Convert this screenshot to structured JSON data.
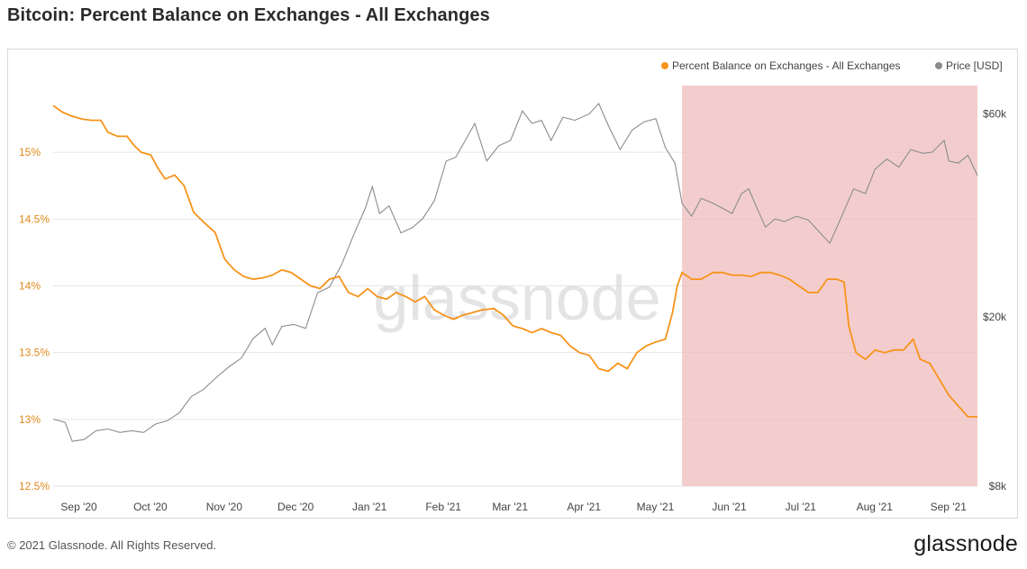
{
  "title": "Bitcoin: Percent Balance on Exchanges - All Exchanges",
  "footer": {
    "copyright": "© 2021 Glassnode. All Rights Reserved.",
    "logo": "glassnode"
  },
  "watermark": "glassnode",
  "colors": {
    "balance": "#f7931a",
    "price": "#8c8c8c",
    "highlight": "#f0c0c0",
    "grid": "#e6e6e6"
  },
  "chart_data": {
    "type": "line",
    "x_range": [
      "2020-08-28",
      "2021-09-20"
    ],
    "legend_position": "top-right",
    "grid": {
      "horizontal": true,
      "vertical": false
    },
    "x_ticks": [
      {
        "label": "Sep '20",
        "date": "2020-09-01"
      },
      {
        "label": "Oct '20",
        "date": "2020-10-01"
      },
      {
        "label": "Nov '20",
        "date": "2020-11-01"
      },
      {
        "label": "Dec '20",
        "date": "2020-12-01"
      },
      {
        "label": "Jan '21",
        "date": "2021-01-01"
      },
      {
        "label": "Feb '21",
        "date": "2021-02-01"
      },
      {
        "label": "Mar '21",
        "date": "2021-03-01"
      },
      {
        "label": "Apr '21",
        "date": "2021-04-01"
      },
      {
        "label": "May '21",
        "date": "2021-05-01"
      },
      {
        "label": "Jun '21",
        "date": "2021-06-01"
      },
      {
        "label": "Jul '21",
        "date": "2021-07-01"
      },
      {
        "label": "Aug '21",
        "date": "2021-08-01"
      },
      {
        "label": "Sep '21",
        "date": "2021-09-01"
      }
    ],
    "y_left": {
      "range": [
        12.5,
        15.5
      ],
      "ticks": [
        12.5,
        13,
        13.5,
        14,
        14.5,
        15
      ],
      "tick_labels": [
        "12.5%",
        "13%",
        "13.5%",
        "14%",
        "14.5%",
        "15%"
      ]
    },
    "y_right": {
      "scale": "log",
      "range": [
        8000,
        70000
      ],
      "ticks": [
        8000,
        20000,
        60000
      ],
      "tick_labels": [
        "$8k",
        "$20k",
        "$60k"
      ]
    },
    "highlight_region": {
      "from": "2021-05-19",
      "to": "2021-09-20"
    },
    "series": [
      {
        "name": "Percent Balance on Exchanges - All Exchanges",
        "axis": "left",
        "points": [
          [
            "2020-08-28",
            15.35
          ],
          [
            "2020-09-01",
            15.3
          ],
          [
            "2020-09-05",
            15.27
          ],
          [
            "2020-09-09",
            15.25
          ],
          [
            "2020-09-13",
            15.24
          ],
          [
            "2020-09-17",
            15.24
          ],
          [
            "2020-09-20",
            15.15
          ],
          [
            "2020-09-24",
            15.12
          ],
          [
            "2020-09-28",
            15.12
          ],
          [
            "2020-10-01",
            15.05
          ],
          [
            "2020-10-04",
            15.0
          ],
          [
            "2020-10-08",
            14.98
          ],
          [
            "2020-10-11",
            14.88
          ],
          [
            "2020-10-14",
            14.8
          ],
          [
            "2020-10-18",
            14.83
          ],
          [
            "2020-10-22",
            14.75
          ],
          [
            "2020-10-26",
            14.55
          ],
          [
            "2020-10-30",
            14.48
          ],
          [
            "2020-11-04",
            14.4
          ],
          [
            "2020-11-08",
            14.2
          ],
          [
            "2020-11-12",
            14.12
          ],
          [
            "2020-11-16",
            14.07
          ],
          [
            "2020-11-20",
            14.05
          ],
          [
            "2020-11-24",
            14.06
          ],
          [
            "2020-11-28",
            14.08
          ],
          [
            "2020-12-02",
            14.12
          ],
          [
            "2020-12-06",
            14.1
          ],
          [
            "2020-12-10",
            14.05
          ],
          [
            "2020-12-14",
            14.0
          ],
          [
            "2020-12-18",
            13.98
          ],
          [
            "2020-12-22",
            14.05
          ],
          [
            "2020-12-26",
            14.07
          ],
          [
            "2020-12-30",
            13.95
          ],
          [
            "2021-01-03",
            13.92
          ],
          [
            "2021-01-07",
            13.98
          ],
          [
            "2021-01-11",
            13.92
          ],
          [
            "2021-01-15",
            13.9
          ],
          [
            "2021-01-19",
            13.95
          ],
          [
            "2021-01-23",
            13.92
          ],
          [
            "2021-01-27",
            13.88
          ],
          [
            "2021-01-31",
            13.92
          ],
          [
            "2021-02-04",
            13.82
          ],
          [
            "2021-02-08",
            13.78
          ],
          [
            "2021-02-12",
            13.75
          ],
          [
            "2021-02-16",
            13.78
          ],
          [
            "2021-02-20",
            13.8
          ],
          [
            "2021-02-24",
            13.82
          ],
          [
            "2021-03-01",
            13.83
          ],
          [
            "2021-03-05",
            13.78
          ],
          [
            "2021-03-09",
            13.7
          ],
          [
            "2021-03-13",
            13.68
          ],
          [
            "2021-03-17",
            13.65
          ],
          [
            "2021-03-21",
            13.68
          ],
          [
            "2021-03-25",
            13.65
          ],
          [
            "2021-03-29",
            13.63
          ],
          [
            "2021-04-02",
            13.55
          ],
          [
            "2021-04-06",
            13.5
          ],
          [
            "2021-04-10",
            13.48
          ],
          [
            "2021-04-14",
            13.38
          ],
          [
            "2021-04-18",
            13.36
          ],
          [
            "2021-04-22",
            13.42
          ],
          [
            "2021-04-26",
            13.38
          ],
          [
            "2021-04-30",
            13.5
          ],
          [
            "2021-05-04",
            13.55
          ],
          [
            "2021-05-08",
            13.58
          ],
          [
            "2021-05-12",
            13.6
          ],
          [
            "2021-05-15",
            13.8
          ],
          [
            "2021-05-17",
            14.0
          ],
          [
            "2021-05-19",
            14.1
          ],
          [
            "2021-05-23",
            14.05
          ],
          [
            "2021-05-27",
            14.05
          ],
          [
            "2021-06-01",
            14.1
          ],
          [
            "2021-06-05",
            14.1
          ],
          [
            "2021-06-09",
            14.08
          ],
          [
            "2021-06-13",
            14.08
          ],
          [
            "2021-06-17",
            14.07
          ],
          [
            "2021-06-21",
            14.1
          ],
          [
            "2021-06-25",
            14.1
          ],
          [
            "2021-06-29",
            14.08
          ],
          [
            "2021-07-03",
            14.05
          ],
          [
            "2021-07-07",
            14.0
          ],
          [
            "2021-07-11",
            13.95
          ],
          [
            "2021-07-15",
            13.95
          ],
          [
            "2021-07-19",
            14.05
          ],
          [
            "2021-07-23",
            14.05
          ],
          [
            "2021-07-26",
            14.03
          ],
          [
            "2021-07-28",
            13.7
          ],
          [
            "2021-07-31",
            13.5
          ],
          [
            "2021-08-04",
            13.45
          ],
          [
            "2021-08-08",
            13.52
          ],
          [
            "2021-08-12",
            13.5
          ],
          [
            "2021-08-16",
            13.52
          ],
          [
            "2021-08-20",
            13.52
          ],
          [
            "2021-08-24",
            13.6
          ],
          [
            "2021-08-27",
            13.45
          ],
          [
            "2021-08-31",
            13.42
          ],
          [
            "2021-09-04",
            13.3
          ],
          [
            "2021-09-08",
            13.18
          ],
          [
            "2021-09-12",
            13.1
          ],
          [
            "2021-09-16",
            13.02
          ],
          [
            "2021-09-20",
            13.02
          ]
        ]
      },
      {
        "name": "Price [USD]",
        "axis": "right",
        "points": [
          [
            "2020-08-28",
            11500
          ],
          [
            "2020-09-02",
            11300
          ],
          [
            "2020-09-05",
            10200
          ],
          [
            "2020-09-10",
            10300
          ],
          [
            "2020-09-15",
            10800
          ],
          [
            "2020-09-20",
            10900
          ],
          [
            "2020-09-25",
            10700
          ],
          [
            "2020-09-30",
            10800
          ],
          [
            "2020-10-05",
            10700
          ],
          [
            "2020-10-10",
            11200
          ],
          [
            "2020-10-15",
            11400
          ],
          [
            "2020-10-20",
            11900
          ],
          [
            "2020-10-25",
            13000
          ],
          [
            "2020-10-30",
            13500
          ],
          [
            "2020-11-05",
            14500
          ],
          [
            "2020-11-10",
            15300
          ],
          [
            "2020-11-15",
            16000
          ],
          [
            "2020-11-20",
            17800
          ],
          [
            "2020-11-25",
            18800
          ],
          [
            "2020-11-28",
            17200
          ],
          [
            "2020-12-02",
            19000
          ],
          [
            "2020-12-07",
            19200
          ],
          [
            "2020-12-12",
            18800
          ],
          [
            "2020-12-17",
            22800
          ],
          [
            "2020-12-22",
            23500
          ],
          [
            "2020-12-27",
            26500
          ],
          [
            "2021-01-02",
            32000
          ],
          [
            "2021-01-06",
            36000
          ],
          [
            "2021-01-09",
            40500
          ],
          [
            "2021-01-12",
            35000
          ],
          [
            "2021-01-16",
            36500
          ],
          [
            "2021-01-21",
            31500
          ],
          [
            "2021-01-26",
            32500
          ],
          [
            "2021-01-30",
            34000
          ],
          [
            "2021-02-04",
            37500
          ],
          [
            "2021-02-09",
            46500
          ],
          [
            "2021-02-13",
            47500
          ],
          [
            "2021-02-17",
            52000
          ],
          [
            "2021-02-21",
            57000
          ],
          [
            "2021-02-26",
            46500
          ],
          [
            "2021-03-03",
            50500
          ],
          [
            "2021-03-08",
            52000
          ],
          [
            "2021-03-13",
            61000
          ],
          [
            "2021-03-17",
            57000
          ],
          [
            "2021-03-21",
            58000
          ],
          [
            "2021-03-25",
            52000
          ],
          [
            "2021-03-30",
            59000
          ],
          [
            "2021-04-04",
            58000
          ],
          [
            "2021-04-10",
            60000
          ],
          [
            "2021-04-14",
            63500
          ],
          [
            "2021-04-18",
            56500
          ],
          [
            "2021-04-23",
            49500
          ],
          [
            "2021-04-28",
            55000
          ],
          [
            "2021-05-03",
            57500
          ],
          [
            "2021-05-08",
            58500
          ],
          [
            "2021-05-12",
            50000
          ],
          [
            "2021-05-16",
            46000
          ],
          [
            "2021-05-19",
            37000
          ],
          [
            "2021-05-23",
            34500
          ],
          [
            "2021-05-27",
            38000
          ],
          [
            "2021-06-01",
            37000
          ],
          [
            "2021-06-05",
            36000
          ],
          [
            "2021-06-09",
            35000
          ],
          [
            "2021-06-13",
            39000
          ],
          [
            "2021-06-16",
            40000
          ],
          [
            "2021-06-20",
            35500
          ],
          [
            "2021-06-23",
            32500
          ],
          [
            "2021-06-27",
            34000
          ],
          [
            "2021-07-01",
            33500
          ],
          [
            "2021-07-06",
            34500
          ],
          [
            "2021-07-11",
            33800
          ],
          [
            "2021-07-16",
            31500
          ],
          [
            "2021-07-20",
            29800
          ],
          [
            "2021-07-25",
            34500
          ],
          [
            "2021-07-30",
            40000
          ],
          [
            "2021-08-04",
            39000
          ],
          [
            "2021-08-08",
            44500
          ],
          [
            "2021-08-13",
            47000
          ],
          [
            "2021-08-18",
            45000
          ],
          [
            "2021-08-23",
            49500
          ],
          [
            "2021-08-28",
            48500
          ],
          [
            "2021-09-01",
            48800
          ],
          [
            "2021-09-06",
            52000
          ],
          [
            "2021-09-08",
            46500
          ],
          [
            "2021-09-12",
            46000
          ],
          [
            "2021-09-16",
            48000
          ],
          [
            "2021-09-20",
            43000
          ]
        ]
      }
    ]
  }
}
